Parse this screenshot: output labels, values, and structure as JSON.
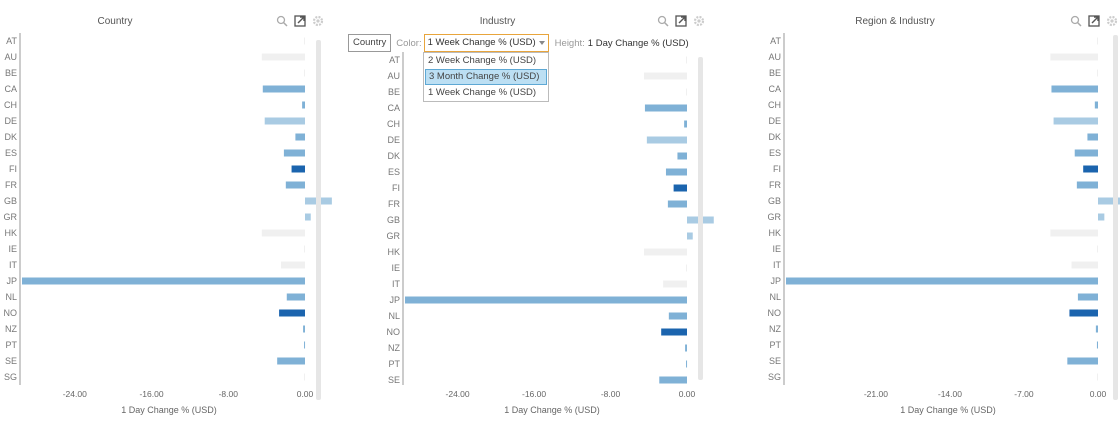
{
  "panels": [
    {
      "title": "Country"
    },
    {
      "title": "Industry"
    },
    {
      "title": "Region & Industry"
    }
  ],
  "toolbar": {
    "dim_button": "Country",
    "color_label": "Color:",
    "color_value": "1 Week Change % (USD)",
    "height_label": "Height:",
    "height_value": "1 Day Change % (USD)"
  },
  "dropdown": {
    "options": [
      "2 Week Change % (USD)",
      "3 Month Change % (USD)",
      "1 Week Change % (USD)"
    ],
    "highlighted_index": 1
  },
  "colors": {
    "bar_light": "#a9cbe3",
    "bar_mid": "#7fb1d6",
    "bar_dark": "#1b64ae",
    "bar_faint": "#f0f0f0"
  },
  "chart_data": [
    {
      "type": "bar",
      "orientation": "horizontal",
      "title": "Country",
      "categories": [
        "AT",
        "AU",
        "BE",
        "CA",
        "CH",
        "DE",
        "DK",
        "ES",
        "FI",
        "FR",
        "GB",
        "GR",
        "HK",
        "IE",
        "IT",
        "JP",
        "NL",
        "NO",
        "NZ",
        "PT",
        "SE",
        "SG"
      ],
      "values": [
        0,
        -4.5,
        0,
        -4.4,
        -0.3,
        -4.2,
        -1.0,
        -2.2,
        -1.4,
        -2.0,
        2.8,
        0.6,
        -4.5,
        0,
        -2.5,
        -29.5,
        -1.9,
        -2.7,
        -0.2,
        -0.1,
        -2.9,
        0
      ],
      "shades": [
        "faint",
        "faint",
        "faint",
        "mid",
        "mid",
        "light",
        "mid",
        "mid",
        "dark",
        "mid",
        "light",
        "light",
        "faint",
        "faint",
        "faint",
        "mid",
        "mid",
        "dark",
        "mid",
        "mid",
        "mid",
        "faint"
      ],
      "xlabel": "1 Day Change % (USD)",
      "xticks": [
        -24,
        -16,
        -8,
        0
      ],
      "xtick_labels": [
        "-24.00",
        "-16.00",
        "-8.00",
        "0.00"
      ],
      "xlim": [
        -29.5,
        2.8
      ]
    },
    {
      "type": "bar",
      "orientation": "horizontal",
      "title": "Industry",
      "categories": [
        "AT",
        "AU",
        "BE",
        "CA",
        "CH",
        "DE",
        "DK",
        "ES",
        "FI",
        "FR",
        "GB",
        "GR",
        "HK",
        "IE",
        "IT",
        "JP",
        "NL",
        "NO",
        "NZ",
        "PT",
        "SE"
      ],
      "values": [
        0,
        -4.5,
        0,
        -4.4,
        -0.3,
        -4.2,
        -1.0,
        -2.2,
        -1.4,
        -2.0,
        2.8,
        0.6,
        -4.5,
        0,
        -2.5,
        -29.5,
        -1.9,
        -2.7,
        -0.2,
        -0.1,
        -2.9
      ],
      "shades": [
        "faint",
        "faint",
        "faint",
        "mid",
        "mid",
        "light",
        "mid",
        "mid",
        "dark",
        "mid",
        "light",
        "light",
        "faint",
        "faint",
        "faint",
        "mid",
        "mid",
        "dark",
        "mid",
        "mid",
        "mid"
      ],
      "xlabel": "1 Day Change % (USD)",
      "xticks": [
        -24,
        -16,
        -8,
        0
      ],
      "xtick_labels": [
        "-24.00",
        "-16.00",
        "-8.00",
        "0.00"
      ],
      "xlim": [
        -29.5,
        2.8
      ]
    },
    {
      "type": "bar",
      "orientation": "horizontal",
      "title": "Region & Industry",
      "categories": [
        "AT",
        "AU",
        "BE",
        "CA",
        "CH",
        "DE",
        "DK",
        "ES",
        "FI",
        "FR",
        "GB",
        "GR",
        "HK",
        "IE",
        "IT",
        "JP",
        "NL",
        "NO",
        "NZ",
        "PT",
        "SE",
        "SG"
      ],
      "values": [
        0,
        -4.5,
        0,
        -4.4,
        -0.3,
        -4.2,
        -1.0,
        -2.2,
        -1.4,
        -2.0,
        2.8,
        0.6,
        -4.5,
        0,
        -2.5,
        -29.5,
        -1.9,
        -2.7,
        -0.2,
        -0.1,
        -2.9,
        0
      ],
      "shades": [
        "faint",
        "faint",
        "faint",
        "mid",
        "mid",
        "light",
        "mid",
        "mid",
        "dark",
        "mid",
        "light",
        "light",
        "faint",
        "faint",
        "faint",
        "mid",
        "mid",
        "dark",
        "mid",
        "mid",
        "mid",
        "faint"
      ],
      "xlabel": "1 Day Change % (USD)",
      "xticks": [
        -21,
        -14,
        -7,
        0
      ],
      "xtick_labels": [
        "-21.00",
        "-14.00",
        "-7.00",
        "0.00"
      ],
      "xlim": [
        -29.5,
        2.8
      ]
    }
  ]
}
